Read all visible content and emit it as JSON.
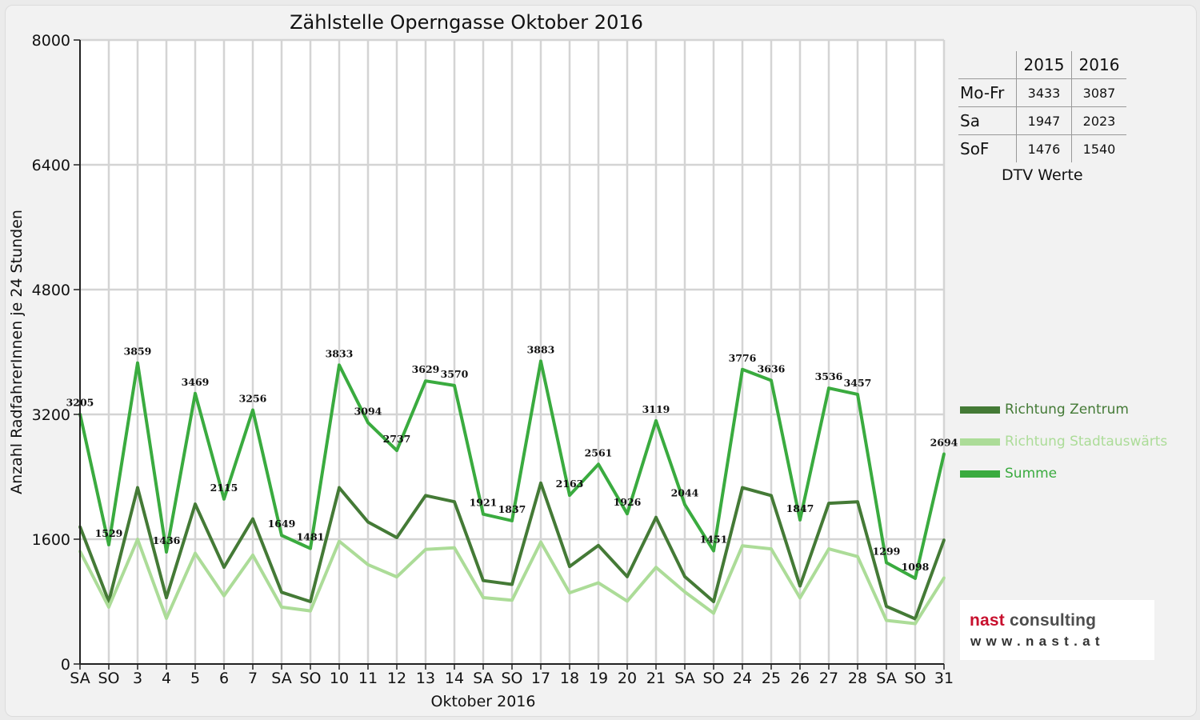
{
  "colors": {
    "zentrum": "#447a36",
    "stadtauswaerts": "#acdc98",
    "summe": "#3aab3f",
    "weekend_label": "#e41a1a",
    "logo_accent": "#c8102e"
  },
  "chart_data": {
    "type": "line",
    "title": "Zählstelle Operngasse Oktober 2016",
    "xlabel": "Oktober 2016",
    "ylabel": "Anzahl RadfahrerInnen je 24 Stunden",
    "ylim": [
      0,
      8000
    ],
    "yticks": [
      0,
      1600,
      3200,
      4800,
      6400,
      8000
    ],
    "grid": true,
    "legend_position": "right",
    "categories": [
      "SA",
      "SO",
      "3",
      "4",
      "5",
      "6",
      "7",
      "SA",
      "SO",
      "10",
      "11",
      "12",
      "13",
      "14",
      "SA",
      "SO",
      "17",
      "18",
      "19",
      "20",
      "21",
      "SA",
      "SO",
      "24",
      "25",
      "26",
      "27",
      "28",
      "SA",
      "SO",
      "31"
    ],
    "weekend_flags": [
      false,
      true,
      false,
      false,
      false,
      false,
      false,
      false,
      true,
      false,
      false,
      false,
      false,
      false,
      false,
      true,
      false,
      false,
      false,
      false,
      false,
      false,
      true,
      false,
      false,
      true,
      false,
      false,
      false,
      true,
      false
    ],
    "series": [
      {
        "name": "Richtung Zentrum",
        "color_key": "zentrum",
        "values": [
          1760,
          800,
          2260,
          850,
          2050,
          1240,
          1860,
          920,
          800,
          2260,
          1820,
          1620,
          2160,
          2080,
          1070,
          1020,
          2320,
          1250,
          1520,
          1120,
          1880,
          1120,
          800,
          2260,
          2160,
          1000,
          2060,
          2080,
          740,
          580,
          1590
        ]
      },
      {
        "name": "Richtung Stadtauswärts",
        "color_key": "stadtauswaerts",
        "values": [
          1445,
          729,
          1599,
          586,
          1419,
          875,
          1396,
          729,
          681,
          1573,
          1274,
          1117,
          1469,
          1490,
          851,
          817,
          1563,
          913,
          1041,
          806,
          1239,
          924,
          651,
          1516,
          1476,
          847,
          1476,
          1377,
          559,
          518,
          1104
        ]
      },
      {
        "name": "Summe",
        "color_key": "summe",
        "labeled": true,
        "values": [
          3205,
          1529,
          3859,
          1436,
          3469,
          2115,
          3256,
          1649,
          1481,
          3833,
          3094,
          2737,
          3629,
          3570,
          1921,
          1837,
          3883,
          2163,
          2561,
          1926,
          3119,
          2044,
          1451,
          3776,
          3636,
          1847,
          3536,
          3457,
          1299,
          1098,
          2694
        ]
      }
    ],
    "data_labels": [
      "3205",
      "1529",
      "3859",
      "1436",
      "3469",
      "2115",
      "3256",
      "1649",
      "1481",
      "3833",
      "3094",
      "2737",
      "3629",
      "3570",
      "1921",
      "1837",
      "3883",
      "2163",
      "2561",
      "1926",
      "3119",
      "2044",
      "1451",
      "3776",
      "3636",
      "1847",
      "3536",
      "3457",
      "1299",
      "1098",
      "2694"
    ]
  },
  "dtv_table": {
    "years": [
      "2015",
      "2016"
    ],
    "rows": [
      {
        "label": "Mo-Fr",
        "v2015": "3433",
        "v2016": "3087"
      },
      {
        "label": "Sa",
        "v2015": "1947",
        "v2016": "2023"
      },
      {
        "label": "SoF",
        "v2015": "1476",
        "v2016": "1540"
      }
    ],
    "caption": "DTV Werte"
  },
  "legend": {
    "items": [
      {
        "label": "Richtung Zentrum",
        "color_key": "zentrum"
      },
      {
        "label": "Richtung Stadtauswärts",
        "color_key": "stadtauswaerts"
      },
      {
        "label": "Summe",
        "color_key": "summe"
      }
    ]
  },
  "logo": {
    "name_first": "nast",
    "name_second": " consulting",
    "url": "www.nast.at"
  }
}
